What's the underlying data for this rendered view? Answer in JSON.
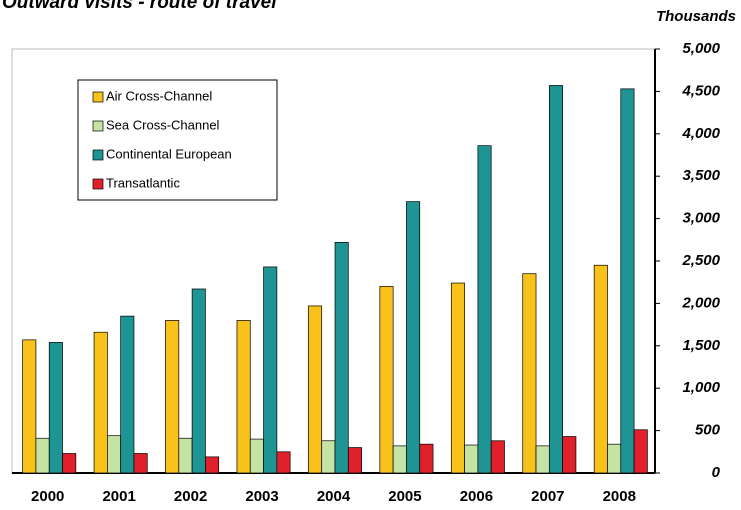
{
  "chart_data": {
    "type": "bar",
    "title": "Outward visits - route of travel",
    "y_axis_label": "Thousands",
    "categories": [
      "2000",
      "2001",
      "2002",
      "2003",
      "2004",
      "2005",
      "2006",
      "2007",
      "2008"
    ],
    "series": [
      {
        "name": "Air Cross-Channel",
        "color": "#f9c21a",
        "values": [
          1570,
          1660,
          1800,
          1800,
          1970,
          2200,
          2240,
          2350,
          2450
        ]
      },
      {
        "name": "Sea Cross-Channel",
        "color": "#c6e3a6",
        "values": [
          410,
          440,
          410,
          400,
          380,
          320,
          330,
          320,
          340
        ]
      },
      {
        "name": "Continental European",
        "color": "#1e9494",
        "values": [
          1540,
          1850,
          2170,
          2430,
          2720,
          3200,
          3860,
          4570,
          4530
        ]
      },
      {
        "name": "Transatlantic",
        "color": "#e0202a",
        "values": [
          230,
          230,
          190,
          250,
          300,
          340,
          380,
          430,
          510
        ]
      }
    ],
    "ylim": [
      0,
      5000
    ],
    "yticks": [
      0,
      500,
      {
        "value": 1000,
        "label": "1,000"
      },
      {
        "value": 1500,
        "label": "1,500"
      },
      {
        "value": 2000,
        "label": "2,000"
      },
      {
        "value": 2500,
        "label": "2,500"
      },
      {
        "value": 3000,
        "label": "3,000"
      },
      {
        "value": 3500,
        "label": "3,500"
      },
      {
        "value": 4000,
        "label": "4,000"
      },
      {
        "value": 4500,
        "label": "4,500"
      },
      {
        "value": 5000,
        "label": "5,000"
      }
    ],
    "legend": "upper left",
    "grid": false
  }
}
